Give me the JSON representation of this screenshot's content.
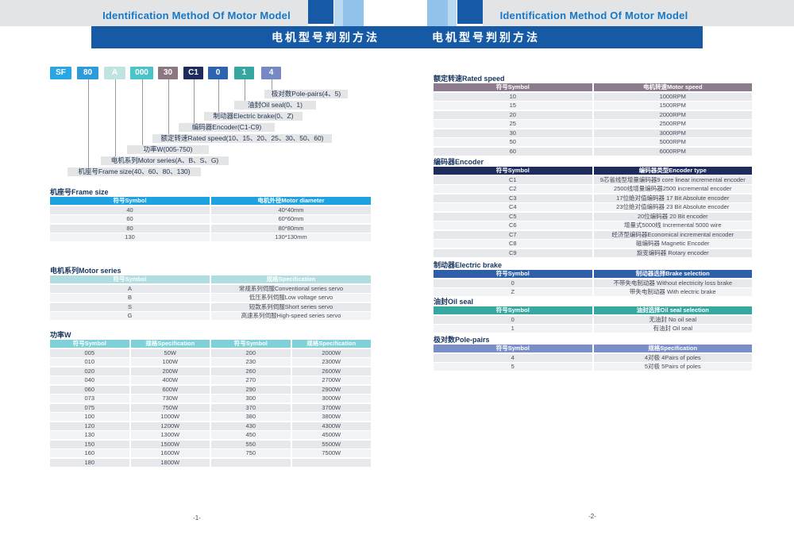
{
  "theme": {
    "band_gray": "#e3e4e6",
    "bar_blue": "#1659a5",
    "accent_pale": "#b9d9f1",
    "accent_medium": "#92c3eb",
    "accent_navy": "#1659a5",
    "title_blue": "#1678c8",
    "row_odd": "#e7e8eb",
    "row_even": "#f2f3f5"
  },
  "page_left": {
    "header": {
      "title_en": "Identification Method Of Motor Model",
      "title_zh": "电机型号判别方法"
    },
    "model_code": {
      "boxes": [
        {
          "label": "SF",
          "color": "#29a7e4"
        },
        {
          "label": "80",
          "color": "#2d9ad9"
        },
        {
          "label": "A",
          "color": "#bfe3e1"
        },
        {
          "label": "000",
          "color": "#4bc4c8"
        },
        {
          "label": "30",
          "color": "#8b7681"
        },
        {
          "label": "C1",
          "color": "#1e2c5c"
        },
        {
          "label": "0",
          "color": "#2e63ad"
        },
        {
          "label": "1",
          "color": "#36a6a0"
        },
        {
          "label": "4",
          "color": "#7689c5"
        }
      ],
      "callouts": [
        "极对数Pole-pairs(4、5)",
        "油封Oil seal(0、1)",
        "制动器Electric brake(0、Z)",
        "编码器Encoder(C1-C9)",
        "额定转速Rated speed(10、15、20、25、30、50、60)",
        "功率W(005-750)",
        "电机系列Motor series(A、B、S、G)",
        "机座号Frame size(40、60、80、130)"
      ]
    },
    "tables": [
      {
        "id": "frame-size",
        "title": "机座号Frame size",
        "header_color": "#1ea2e2",
        "columns": [
          "符号Symbol",
          "电机外径Motor diameter"
        ],
        "rows": [
          [
            "40",
            "40*40mm"
          ],
          [
            "60",
            "60*60mm"
          ],
          [
            "80",
            "80*80mm"
          ],
          [
            "130",
            "130*130mm"
          ]
        ]
      },
      {
        "id": "motor-series",
        "title": "电机系列Motor series",
        "header_color": "#afdde0",
        "columns": [
          "符号Symbol",
          "规格Specification"
        ],
        "rows": [
          [
            "A",
            "常规系列伺服Conventional series servo"
          ],
          [
            "B",
            "低压系列伺服Low voltage servo"
          ],
          [
            "S",
            "短款系列伺服Short series servo"
          ],
          [
            "G",
            "高速系列伺服High-speed series servo"
          ]
        ]
      },
      {
        "id": "power",
        "title": "功率W",
        "header_color": "#7fd0d8",
        "columns": [
          "符号Symbol",
          "规格Specification",
          "符号Symbol",
          "规格Specification"
        ],
        "rows": [
          [
            "005",
            "50W",
            "200",
            "2000W"
          ],
          [
            "010",
            "100W",
            "230",
            "2300W"
          ],
          [
            "020",
            "200W",
            "260",
            "2600W"
          ],
          [
            "040",
            "400W",
            "270",
            "2700W"
          ],
          [
            "060",
            "600W",
            "290",
            "2900W"
          ],
          [
            "073",
            "730W",
            "300",
            "3000W"
          ],
          [
            "075",
            "750W",
            "370",
            "3700W"
          ],
          [
            "100",
            "1000W",
            "380",
            "3800W"
          ],
          [
            "120",
            "1200W",
            "430",
            "4300W"
          ],
          [
            "130",
            "1300W",
            "450",
            "4500W"
          ],
          [
            "150",
            "1500W",
            "550",
            "5500W"
          ],
          [
            "160",
            "1600W",
            "750",
            "7500W"
          ],
          [
            "180",
            "1800W",
            "",
            ""
          ]
        ]
      }
    ],
    "page_number": "-1-"
  },
  "page_right": {
    "header": {
      "title_en": "Identification Method Of Motor Model",
      "title_zh": "电机型号判别方法"
    },
    "tables": [
      {
        "id": "rated-speed",
        "title": "额定转速Rated speed",
        "header_color": "#8b7b8d",
        "columns": [
          "符号Symbol",
          "电机转速Motor speed"
        ],
        "rows": [
          [
            "10",
            "1000RPM"
          ],
          [
            "15",
            "1500RPM"
          ],
          [
            "20",
            "2000RPM"
          ],
          [
            "25",
            "2500RPM"
          ],
          [
            "30",
            "3000RPM"
          ],
          [
            "50",
            "5000RPM"
          ],
          [
            "60",
            "6000RPM"
          ]
        ]
      },
      {
        "id": "encoder",
        "title": "编码器Encoder",
        "header_color": "#1e2c5c",
        "columns": [
          "符号Symbol",
          "编码器类型Encoder type"
        ],
        "rows": [
          [
            "C1",
            "9芯省线型增量编码器9 core linear incremental encoder"
          ],
          [
            "C2",
            "2500线增量编码器2500 incremental encoder"
          ],
          [
            "C3",
            "17位绝对值编码器 17 Bit Absolute encoder"
          ],
          [
            "C4",
            "23位绝对值编码器 23 Bit Absolute encoder"
          ],
          [
            "C5",
            "20位编码器 20 Bit encoder"
          ],
          [
            "C6",
            "增量式5000线 Incremental 5000 wire"
          ],
          [
            "C7",
            "经济型编码器Economical incremental encoder"
          ],
          [
            "C8",
            "磁编码器 Magnetic Encoder"
          ],
          [
            "C9",
            "旋变编码器 Rotary encoder"
          ]
        ]
      },
      {
        "id": "electric-brake",
        "title": "制动器Electric brake",
        "header_color": "#2e5fa8",
        "columns": [
          "符号Symbol",
          "制动器选择Brake selection"
        ],
        "rows": [
          [
            "0",
            "不带失电制动器 Without electricity loss brake"
          ],
          [
            "Z",
            "带失电制动器 With electric brake"
          ]
        ]
      },
      {
        "id": "oil-seal",
        "title": "油封Oil seal",
        "header_color": "#36a7a1",
        "columns": [
          "符号Symbol",
          "油封选择Oil seal selection"
        ],
        "rows": [
          [
            "0",
            "无油封 No oil seal"
          ],
          [
            "1",
            "有油封 Oil seal"
          ]
        ]
      },
      {
        "id": "pole-pairs",
        "title": "极对数Pole-pairs",
        "header_color": "#7a8ec8",
        "columns": [
          "符号Symbol",
          "规格Specification"
        ],
        "rows": [
          [
            "4",
            "4对极 4Pairs of poles"
          ],
          [
            "5",
            "5对极 5Pairs of poles"
          ]
        ]
      }
    ],
    "page_number": "-2-"
  }
}
